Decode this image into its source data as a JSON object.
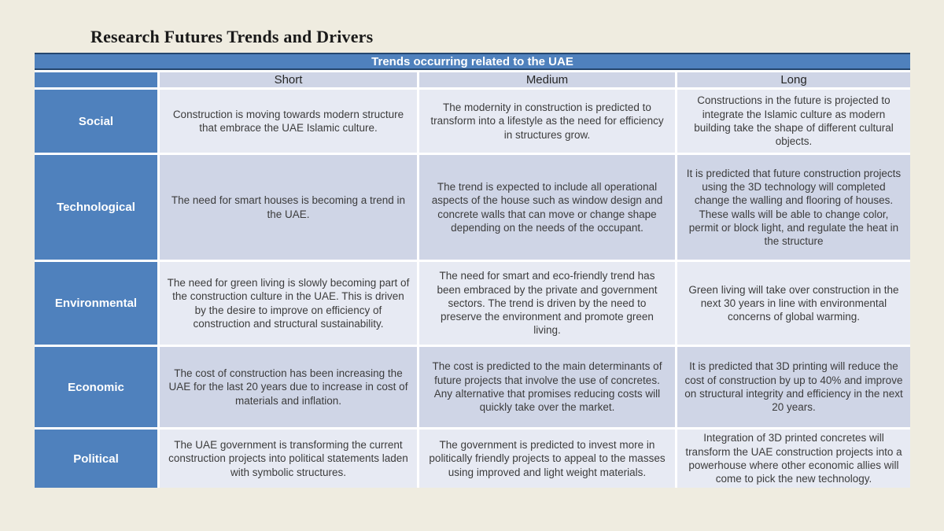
{
  "page": {
    "title": "Research Futures Trends and Drivers"
  },
  "table": {
    "caption": "Trends occurring related to the UAE",
    "columns": [
      "Short",
      "Medium",
      "Long"
    ],
    "rows": [
      {
        "category": "Social",
        "cells": [
          "Construction is moving towards modern structure that embrace the UAE Islamic culture.",
          "The modernity in construction is predicted to transform into a lifestyle as the need for efficiency in structures grow.",
          "Constructions in the future is projected to integrate the Islamic culture as modern building take the shape of different cultural objects."
        ]
      },
      {
        "category": "Technological",
        "cells": [
          "The need for smart houses is becoming a trend in the UAE.",
          "The trend is expected to include all operational aspects of the house such as window design and concrete walls that can move or change shape depending on the needs of the occupant.",
          "It is predicted that future construction projects using the 3D technology will completed change the walling and flooring of houses. These walls will be able to change color, permit or block light, and regulate the heat in the structure"
        ]
      },
      {
        "category": "Environmental",
        "cells": [
          "The need for green living is slowly becoming part of the construction culture in the UAE. This is driven by the desire to improve on efficiency of construction and structural sustainability.",
          "The need for smart and eco-friendly trend has been embraced by the private and government sectors. The trend is driven by the need to preserve the environment and promote green living.",
          "Green living will take over construction in the next 30 years in line with environmental concerns of global warming."
        ]
      },
      {
        "category": "Economic",
        "cells": [
          "The cost of construction has been increasing the UAE for the last 20 years due to increase in cost of materials and inflation.",
          "The cost is predicted to the main determinants of future projects that involve the use of concretes. Any alternative that promises reducing costs will quickly take over the market.",
          "It is predicted that 3D printing will reduce the cost of construction by up to 40% and improve on structural integrity and efficiency in the next 20 years."
        ]
      },
      {
        "category": "Political",
        "cells": [
          "The UAE government is transforming the current construction projects into political statements laden with symbolic structures.",
          "The government is predicted to invest more in politically friendly projects to appeal to the masses using improved and light weight materials.",
          "Integration of 3D printed concretes will transform the UAE construction projects into a powerhouse where other economic allies will come to pick the new technology."
        ]
      }
    ]
  },
  "colors": {
    "header_blue": "#4F81BD",
    "band_dark": "#CFD5E6",
    "band_light": "#E7EAF3",
    "accent_border": "#24466E",
    "slide_background": "#EFECE0"
  }
}
